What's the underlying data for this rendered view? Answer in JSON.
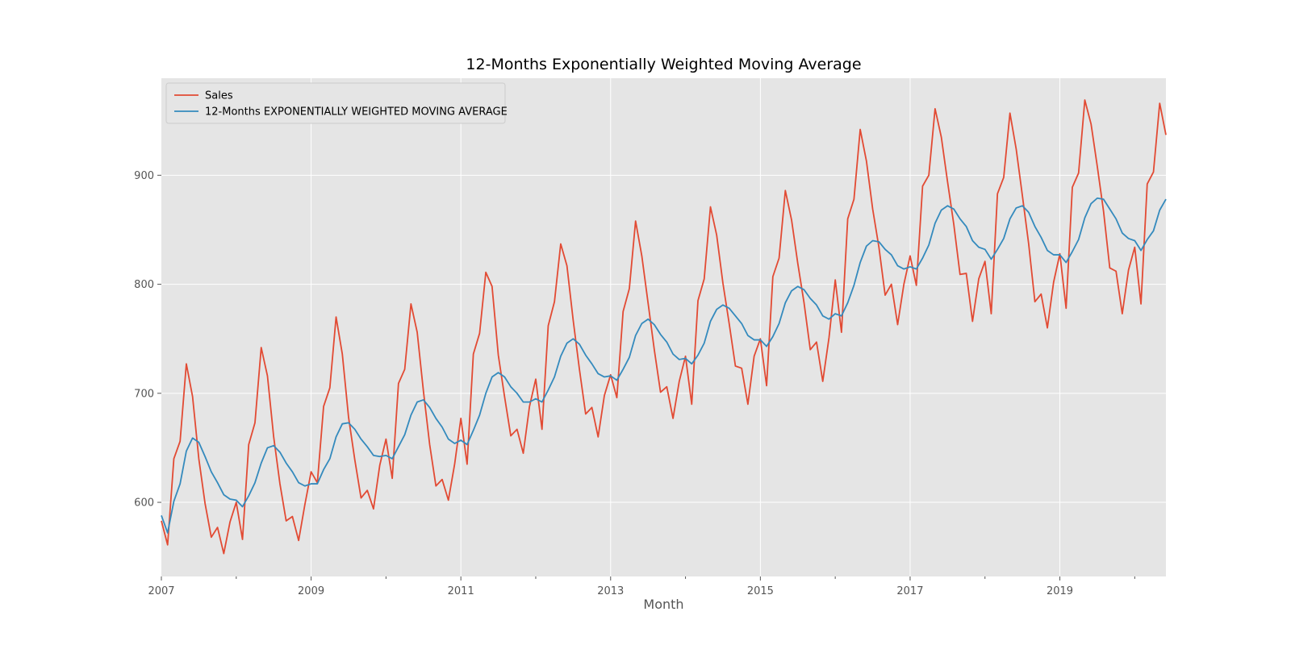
{
  "chart_data": {
    "type": "line",
    "title": "12-Months Exponentially Weighted Moving Average",
    "xlabel": "Month",
    "ylabel": "",
    "x_start": "2007-01",
    "x_ticks": [
      "2007",
      "2009",
      "2011",
      "2013",
      "2015",
      "2017",
      "2019"
    ],
    "y_ticks": [
      600,
      700,
      800,
      900
    ],
    "xlim": [
      "2007-01",
      "2020-06"
    ],
    "ylim": [
      532,
      989
    ],
    "grid": true,
    "legend_position": "top-left",
    "colors": {
      "plot_background": "#e5e5e5",
      "grid": "#ffffff",
      "sales": "#e24a33",
      "ewma": "#348abd"
    },
    "series": [
      {
        "name": "Sales",
        "values": [
          583,
          561,
          640,
          656,
          727,
          697,
          640,
          599,
          568,
          577,
          553,
          582,
          600,
          566,
          653,
          673,
          742,
          716,
          660,
          617,
          583,
          587,
          565,
          598,
          628,
          618,
          688,
          705,
          770,
          736,
          678,
          639,
          604,
          611,
          594,
          634,
          658,
          622,
          709,
          722,
          782,
          756,
          702,
          653,
          615,
          621,
          602,
          635,
          677,
          635,
          736,
          755,
          811,
          798,
          735,
          697,
          661,
          667,
          645,
          688,
          713,
          667,
          762,
          784,
          837,
          817,
          767,
          722,
          681,
          687,
          660,
          698,
          717,
          696,
          775,
          796,
          858,
          826,
          783,
          740,
          701,
          706,
          677,
          711,
          734,
          690,
          785,
          805,
          871,
          845,
          801,
          764,
          725,
          723,
          690,
          734,
          750,
          707,
          807,
          824,
          886,
          859,
          819,
          783,
          740,
          747,
          711,
          751,
          804,
          756,
          860,
          878,
          942,
          913,
          869,
          834,
          790,
          800,
          763,
          800,
          826,
          799,
          890,
          900,
          961,
          935,
          894,
          855,
          809,
          810,
          766,
          805,
          821,
          773,
          883,
          898,
          957,
          924,
          881,
          837,
          784,
          791,
          760,
          802,
          828,
          778,
          889,
          902,
          969,
          947,
          908,
          867,
          815,
          812,
          773,
          813,
          834,
          782,
          892,
          903,
          966,
          937
        ]
      },
      {
        "name": "12-Months EXPONENTIALLY WEIGHTED MOVING AVERAGE",
        "values": [
          588,
          572,
          601,
          617,
          647,
          659,
          655,
          642,
          628,
          618,
          607,
          603,
          602,
          596,
          606,
          618,
          636,
          650,
          652,
          646,
          636,
          628,
          618,
          615,
          617,
          617,
          630,
          640,
          660,
          672,
          673,
          667,
          658,
          651,
          643,
          642,
          643,
          640,
          651,
          662,
          680,
          692,
          694,
          687,
          677,
          669,
          658,
          654,
          657,
          653,
          666,
          680,
          700,
          715,
          719,
          715,
          706,
          700,
          692,
          692,
          695,
          692,
          703,
          715,
          734,
          746,
          750,
          745,
          735,
          727,
          718,
          715,
          716,
          712,
          722,
          733,
          753,
          764,
          768,
          763,
          754,
          747,
          736,
          731,
          732,
          727,
          735,
          746,
          766,
          777,
          781,
          778,
          771,
          764,
          753,
          749,
          749,
          743,
          752,
          764,
          783,
          794,
          798,
          795,
          787,
          781,
          771,
          768,
          773,
          771,
          783,
          799,
          820,
          835,
          840,
          839,
          832,
          827,
          817,
          814,
          816,
          814,
          824,
          836,
          856,
          868,
          872,
          869,
          860,
          853,
          840,
          834,
          832,
          823,
          832,
          842,
          860,
          870,
          872,
          866,
          853,
          843,
          831,
          827,
          827,
          820,
          830,
          841,
          861,
          874,
          879,
          878,
          869,
          860,
          847,
          842,
          840,
          831,
          841,
          849,
          868,
          878
        ]
      }
    ]
  }
}
